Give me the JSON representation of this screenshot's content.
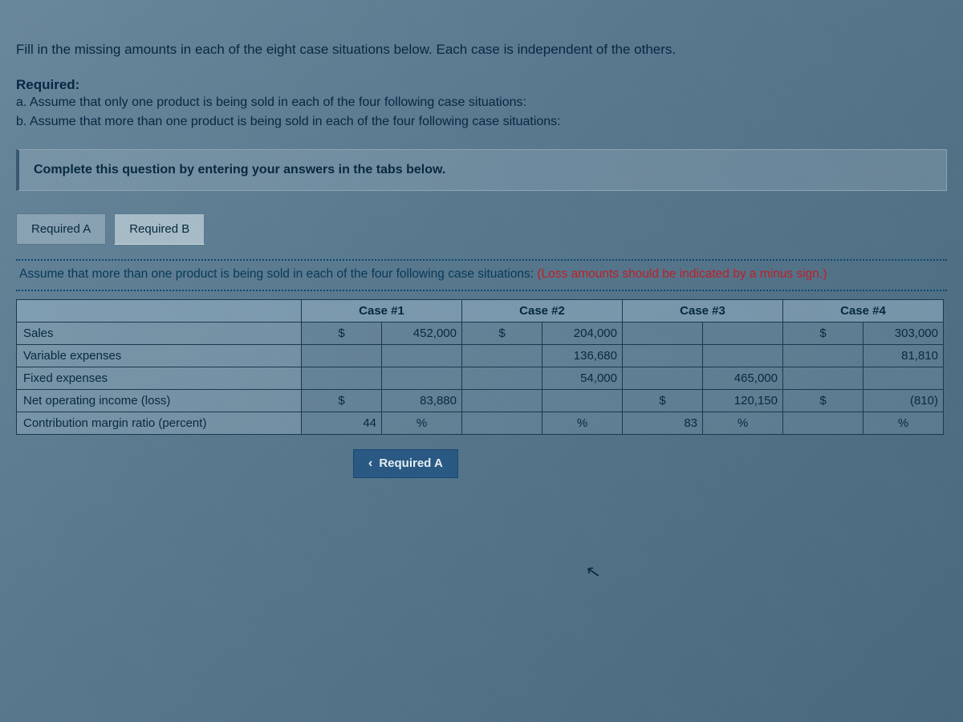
{
  "intro": "Fill in the missing amounts in each of the eight case situations below. Each case is independent of the others.",
  "required": {
    "label": "Required:",
    "a": "a. Assume that only one product is being sold in each of the four following case situations:",
    "b": "b. Assume that more than one product is being sold in each of the four following case situations:"
  },
  "instruction": "Complete this question by entering your answers in the tabs below.",
  "tabs": {
    "a": "Required A",
    "b": "Required B"
  },
  "assumption": {
    "text": "Assume that more than one product is being sold in each of the four following case situations: ",
    "hint": "(Loss amounts should be indicated by a minus sign.)"
  },
  "table": {
    "headers": {
      "c1": "Case #1",
      "c2": "Case #2",
      "c3": "Case #3",
      "c4": "Case #4"
    },
    "rows": {
      "sales": {
        "label": "Sales",
        "c1": {
          "sym": "$",
          "val": "452,000"
        },
        "c2": {
          "sym": "$",
          "val": "204,000"
        },
        "c3": {
          "sym": "",
          "val": ""
        },
        "c4": {
          "sym": "$",
          "val": "303,000"
        }
      },
      "varexp": {
        "label": "Variable expenses",
        "c1": {
          "sym": "",
          "val": ""
        },
        "c2": {
          "sym": "",
          "val": "136,680"
        },
        "c3": {
          "sym": "",
          "val": ""
        },
        "c4": {
          "sym": "",
          "val": "81,810"
        }
      },
      "fixed": {
        "label": "Fixed expenses",
        "c1": {
          "sym": "",
          "val": ""
        },
        "c2": {
          "sym": "",
          "val": "54,000"
        },
        "c3": {
          "sym": "",
          "val": "465,000"
        },
        "c4": {
          "sym": "",
          "val": ""
        }
      },
      "noi": {
        "label": "Net operating income (loss)",
        "c1": {
          "sym": "$",
          "val": "83,880"
        },
        "c2": {
          "sym": "",
          "val": ""
        },
        "c3": {
          "sym": "$",
          "val": "120,150"
        },
        "c4": {
          "sym": "$",
          "val": "(810)"
        }
      },
      "cmr": {
        "label": "Contribution margin ratio (percent)",
        "c1": {
          "val": "44",
          "unit": "%"
        },
        "c2": {
          "val": "",
          "unit": "%"
        },
        "c3": {
          "val": "83",
          "unit": "%"
        },
        "c4": {
          "val": "",
          "unit": "%"
        }
      }
    }
  },
  "nav": {
    "prev": "Required A"
  }
}
